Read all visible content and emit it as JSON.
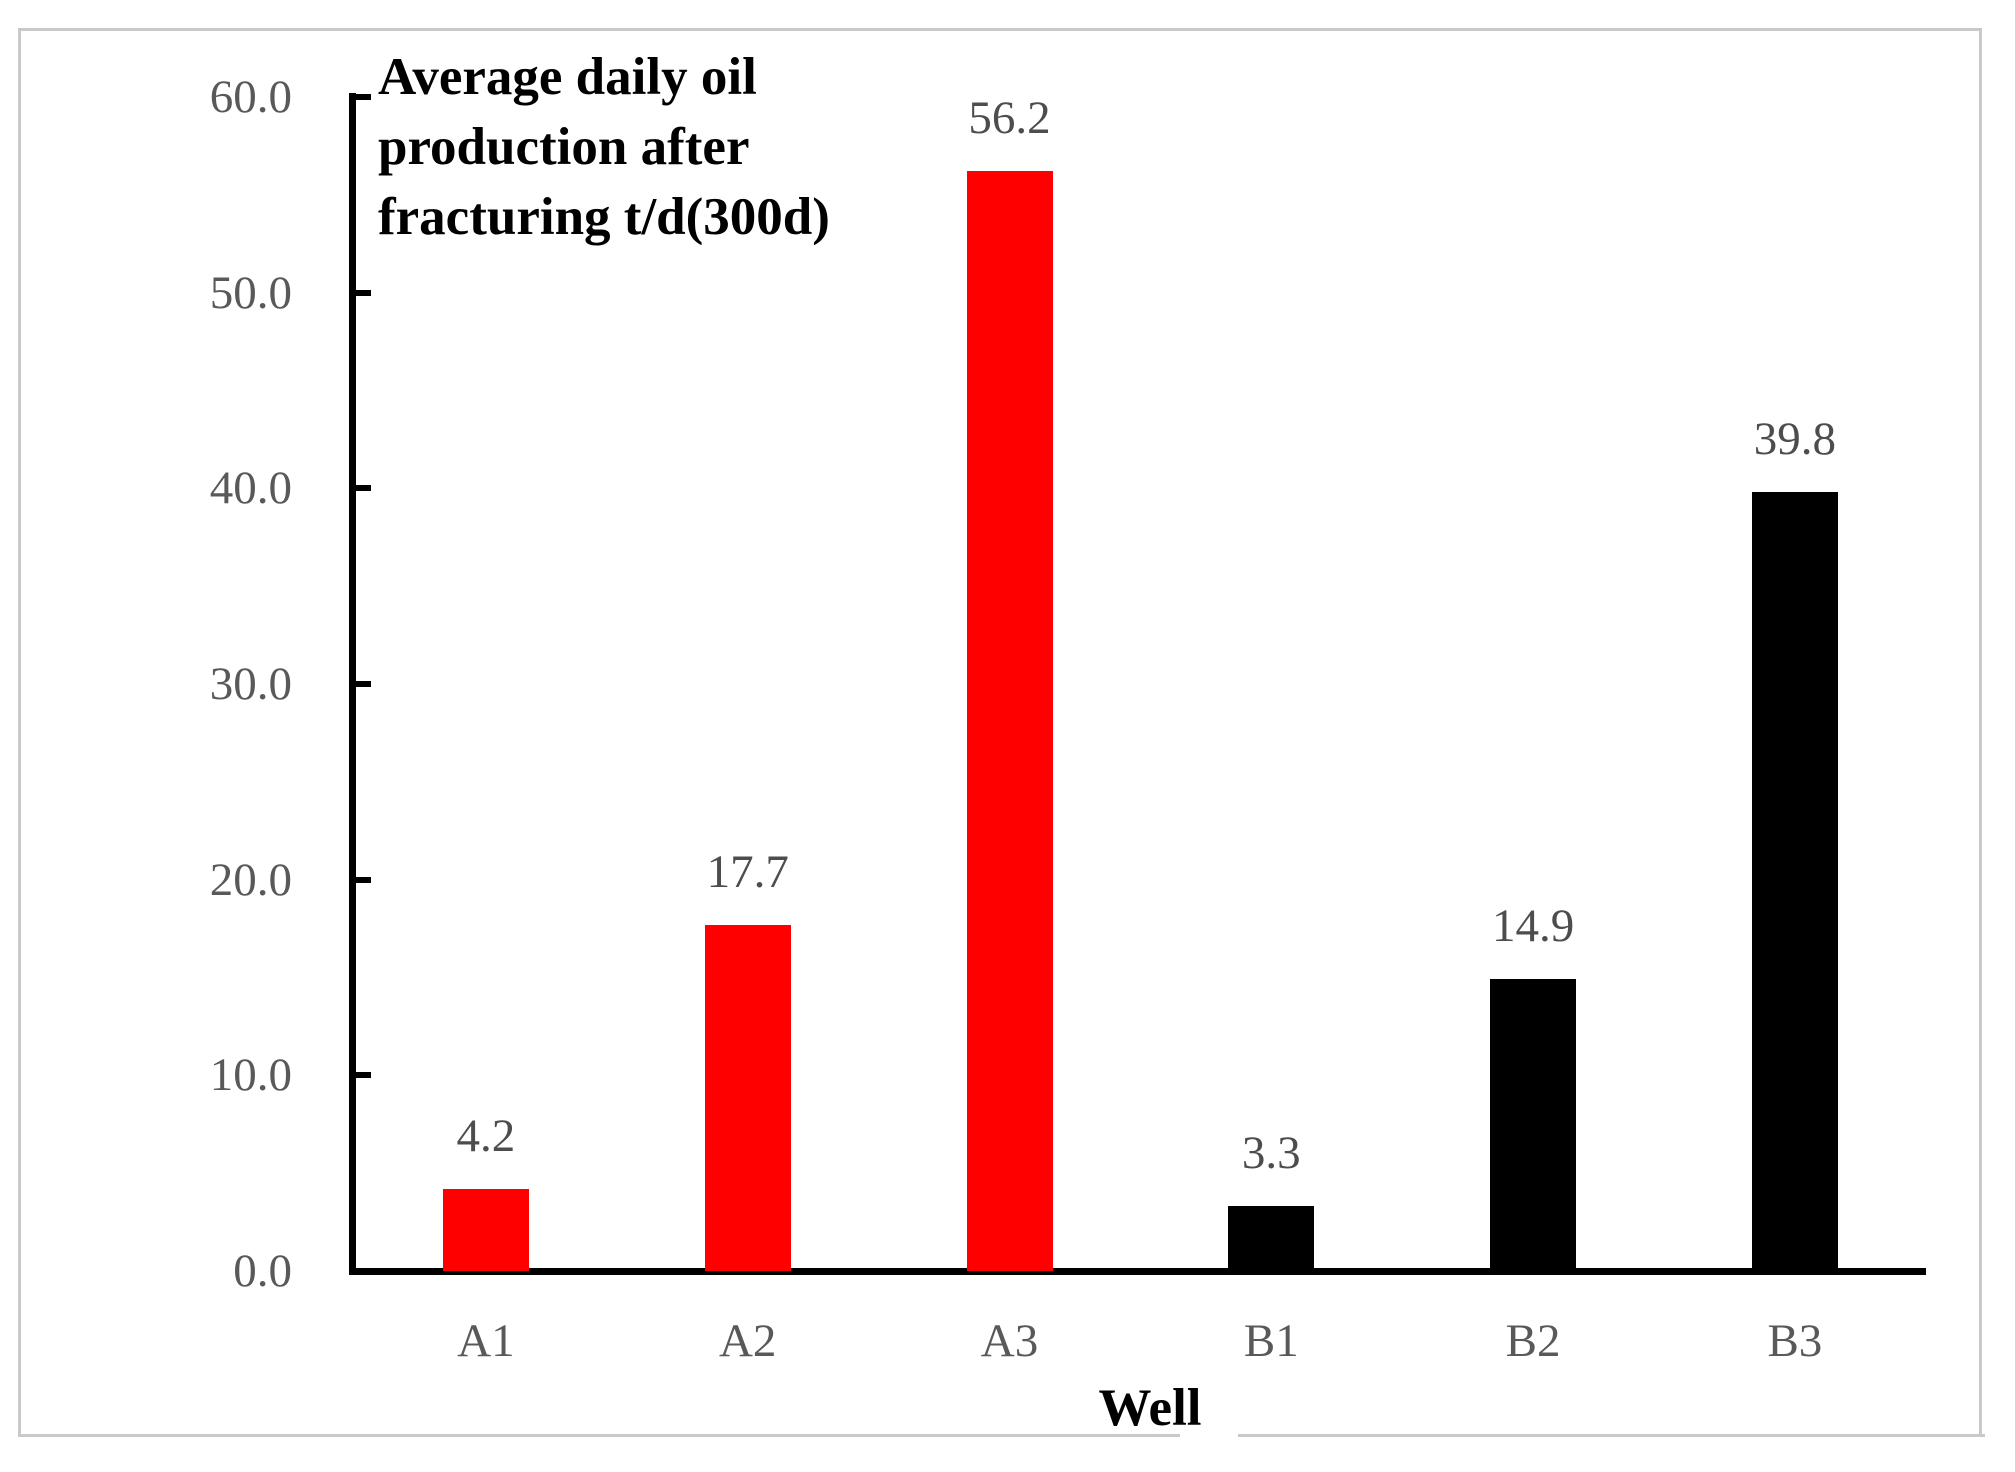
{
  "figure": {
    "frame_color": "#c9c9c9",
    "background_color": "#ffffff"
  },
  "chart_data": {
    "type": "bar",
    "title": "Average daily oil production after fracturing t/d(300d)",
    "title_lines": [
      "Average daily oil",
      "production after",
      "fracturing t/d(300d)"
    ],
    "xlabel": "Well",
    "ylabel": "",
    "categories": [
      "A1",
      "A2",
      "A3",
      "B1",
      "B2",
      "B3"
    ],
    "values": [
      4.2,
      17.7,
      56.2,
      3.3,
      14.9,
      39.8
    ],
    "value_labels": [
      "4.2",
      "17.7",
      "56.2",
      "3.3",
      "14.9",
      "39.8"
    ],
    "bar_colors": [
      "#ff0000",
      "#ff0000",
      "#ff0000",
      "#000000",
      "#000000",
      "#000000"
    ],
    "ylim": [
      0,
      60
    ],
    "ytick_step": 10,
    "ytick_labels": [
      "0.0",
      "10.0",
      "20.0",
      "30.0",
      "40.0",
      "50.0",
      "60.0"
    ],
    "grid": false,
    "legend": "none",
    "axis_color": "#000000",
    "ytick_label_color": "#595959",
    "value_label_color": "#4d4d4d",
    "category_label_color": "#595959"
  }
}
